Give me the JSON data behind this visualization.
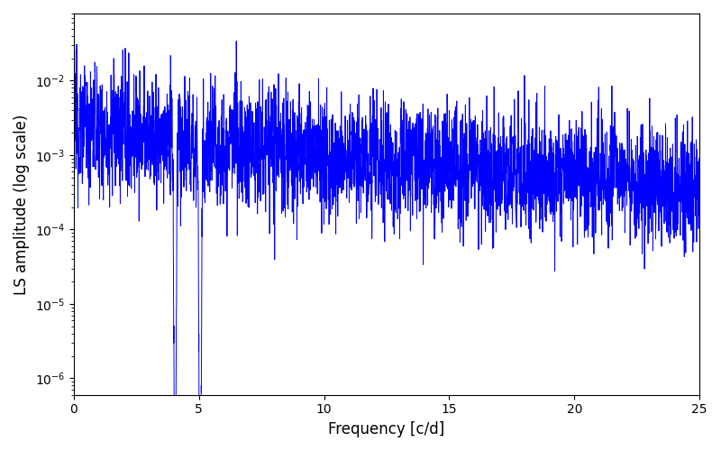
{
  "xlabel": "Frequency [c/d]",
  "ylabel": "LS amplitude (log scale)",
  "line_color": "#0000FF",
  "line_width": 0.7,
  "xlim": [
    0,
    25
  ],
  "ylim": [
    6e-07,
    0.08
  ],
  "yscale": "log",
  "figsize": [
    8.0,
    5.0
  ],
  "dpi": 100,
  "seed": 12345,
  "n_points": 5000,
  "freq_max": 25.0
}
